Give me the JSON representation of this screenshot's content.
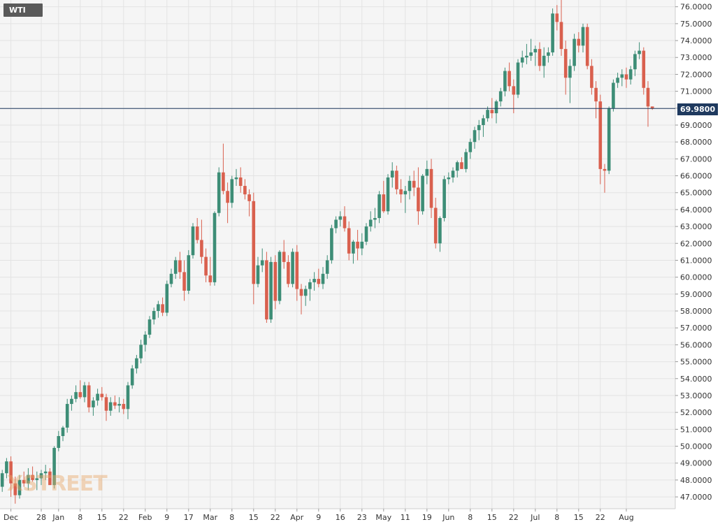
{
  "chart_data": {
    "type": "candlestick",
    "symbol": "WTI",
    "last_price": "69.9800",
    "last_value": 69.98,
    "watermark": "XSTREET",
    "ylim": [
      46.3,
      76.4
    ],
    "y_ticks": [
      "47.0000",
      "48.0000",
      "49.0000",
      "50.0000",
      "51.0000",
      "52.0000",
      "53.0000",
      "54.0000",
      "55.0000",
      "56.0000",
      "57.0000",
      "58.0000",
      "59.0000",
      "60.0000",
      "61.0000",
      "62.0000",
      "63.0000",
      "64.0000",
      "65.0000",
      "66.0000",
      "67.0000",
      "68.0000",
      "69.0000",
      "70.0000",
      "71.0000",
      "72.0000",
      "73.0000",
      "74.0000",
      "75.0000",
      "76.0000"
    ],
    "x_ticks": [
      {
        "label": "Dec",
        "index": 2
      },
      {
        "label": "28",
        "index": 9
      },
      {
        "label": "Jan",
        "index": 13
      },
      {
        "label": "8",
        "index": 18
      },
      {
        "label": "15",
        "index": 23
      },
      {
        "label": "22",
        "index": 28
      },
      {
        "label": "Feb",
        "index": 33
      },
      {
        "label": "9",
        "index": 38
      },
      {
        "label": "17",
        "index": 43
      },
      {
        "label": "Mar",
        "index": 48
      },
      {
        "label": "8",
        "index": 53
      },
      {
        "label": "15",
        "index": 58
      },
      {
        "label": "22",
        "index": 63
      },
      {
        "label": "Apr",
        "index": 68
      },
      {
        "label": "9",
        "index": 73
      },
      {
        "label": "16",
        "index": 78
      },
      {
        "label": "23",
        "index": 83
      },
      {
        "label": "May",
        "index": 88
      },
      {
        "label": "11",
        "index": 93
      },
      {
        "label": "19",
        "index": 98
      },
      {
        "label": "Jun",
        "index": 103
      },
      {
        "label": "8",
        "index": 108
      },
      {
        "label": "15",
        "index": 113
      },
      {
        "label": "22",
        "index": 118
      },
      {
        "label": "Jul",
        "index": 123
      },
      {
        "label": "8",
        "index": 128
      },
      {
        "label": "15",
        "index": 133
      },
      {
        "label": "22",
        "index": 138
      },
      {
        "label": "Aug",
        "index": 144
      }
    ],
    "candles": [
      {
        "o": 47.6,
        "h": 48.6,
        "l": 47.3,
        "c": 48.4
      },
      {
        "o": 48.4,
        "h": 49.3,
        "l": 48.1,
        "c": 49.1
      },
      {
        "o": 49.1,
        "h": 49.4,
        "l": 47.0,
        "c": 47.8
      },
      {
        "o": 47.8,
        "h": 48.2,
        "l": 46.6,
        "c": 47.1
      },
      {
        "o": 47.1,
        "h": 48.3,
        "l": 46.9,
        "c": 48.0
      },
      {
        "o": 48.0,
        "h": 48.5,
        "l": 47.6,
        "c": 47.8
      },
      {
        "o": 47.8,
        "h": 48.7,
        "l": 47.4,
        "c": 48.3
      },
      {
        "o": 48.3,
        "h": 48.8,
        "l": 47.9,
        "c": 48.0
      },
      {
        "o": 48.0,
        "h": 48.5,
        "l": 47.4,
        "c": 48.1
      },
      {
        "o": 48.1,
        "h": 48.6,
        "l": 47.7,
        "c": 48.4
      },
      {
        "o": 48.4,
        "h": 48.9,
        "l": 48.0,
        "c": 48.5
      },
      {
        "o": 48.5,
        "h": 48.7,
        "l": 47.8,
        "c": 47.7
      },
      {
        "o": 47.7,
        "h": 50.0,
        "l": 47.5,
        "c": 49.9
      },
      {
        "o": 49.9,
        "h": 50.9,
        "l": 49.7,
        "c": 50.6
      },
      {
        "o": 50.6,
        "h": 51.2,
        "l": 50.3,
        "c": 51.1
      },
      {
        "o": 51.1,
        "h": 52.8,
        "l": 50.8,
        "c": 52.5
      },
      {
        "o": 52.5,
        "h": 53.0,
        "l": 52.1,
        "c": 52.8
      },
      {
        "o": 52.8,
        "h": 53.6,
        "l": 52.6,
        "c": 53.2
      },
      {
        "o": 53.2,
        "h": 53.9,
        "l": 52.8,
        "c": 52.9
      },
      {
        "o": 52.9,
        "h": 53.8,
        "l": 52.6,
        "c": 53.6
      },
      {
        "o": 53.6,
        "h": 53.8,
        "l": 52.0,
        "c": 52.3
      },
      {
        "o": 52.3,
        "h": 52.9,
        "l": 51.8,
        "c": 52.7
      },
      {
        "o": 52.7,
        "h": 53.4,
        "l": 52.4,
        "c": 53.1
      },
      {
        "o": 53.1,
        "h": 53.5,
        "l": 52.7,
        "c": 52.9
      },
      {
        "o": 52.9,
        "h": 53.1,
        "l": 51.5,
        "c": 52.1
      },
      {
        "o": 52.1,
        "h": 52.9,
        "l": 51.8,
        "c": 52.6
      },
      {
        "o": 52.6,
        "h": 53.0,
        "l": 52.2,
        "c": 52.4
      },
      {
        "o": 52.4,
        "h": 52.9,
        "l": 52.0,
        "c": 52.5
      },
      {
        "o": 52.5,
        "h": 52.8,
        "l": 51.9,
        "c": 52.2
      },
      {
        "o": 52.2,
        "h": 53.8,
        "l": 51.6,
        "c": 53.6
      },
      {
        "o": 53.6,
        "h": 54.8,
        "l": 53.4,
        "c": 54.6
      },
      {
        "o": 54.6,
        "h": 55.4,
        "l": 54.3,
        "c": 55.2
      },
      {
        "o": 55.2,
        "h": 56.3,
        "l": 54.9,
        "c": 56.0
      },
      {
        "o": 56.0,
        "h": 56.8,
        "l": 55.6,
        "c": 56.6
      },
      {
        "o": 56.6,
        "h": 57.7,
        "l": 56.4,
        "c": 57.5
      },
      {
        "o": 57.5,
        "h": 58.2,
        "l": 57.2,
        "c": 58.0
      },
      {
        "o": 58.0,
        "h": 58.6,
        "l": 57.6,
        "c": 58.4
      },
      {
        "o": 58.4,
        "h": 58.8,
        "l": 57.7,
        "c": 57.9
      },
      {
        "o": 57.9,
        "h": 59.8,
        "l": 57.7,
        "c": 59.6
      },
      {
        "o": 59.6,
        "h": 60.5,
        "l": 59.4,
        "c": 60.2
      },
      {
        "o": 60.2,
        "h": 61.2,
        "l": 59.9,
        "c": 61.0
      },
      {
        "o": 61.0,
        "h": 61.5,
        "l": 59.9,
        "c": 60.3
      },
      {
        "o": 60.3,
        "h": 61.0,
        "l": 58.6,
        "c": 59.2
      },
      {
        "o": 59.2,
        "h": 61.6,
        "l": 59.0,
        "c": 61.3
      },
      {
        "o": 61.3,
        "h": 63.2,
        "l": 61.1,
        "c": 63.0
      },
      {
        "o": 63.0,
        "h": 63.5,
        "l": 62.0,
        "c": 62.2
      },
      {
        "o": 62.2,
        "h": 63.4,
        "l": 60.8,
        "c": 61.2
      },
      {
        "o": 61.2,
        "h": 61.7,
        "l": 59.7,
        "c": 60.1
      },
      {
        "o": 60.1,
        "h": 61.2,
        "l": 59.5,
        "c": 59.7
      },
      {
        "o": 59.7,
        "h": 63.9,
        "l": 59.5,
        "c": 63.8
      },
      {
        "o": 63.8,
        "h": 66.5,
        "l": 63.6,
        "c": 66.2
      },
      {
        "o": 66.2,
        "h": 67.9,
        "l": 64.9,
        "c": 65.1
      },
      {
        "o": 65.1,
        "h": 65.6,
        "l": 63.2,
        "c": 64.4
      },
      {
        "o": 64.4,
        "h": 66.0,
        "l": 64.1,
        "c": 65.8
      },
      {
        "o": 65.8,
        "h": 66.4,
        "l": 65.4,
        "c": 65.9
      },
      {
        "o": 65.9,
        "h": 66.5,
        "l": 65.0,
        "c": 65.4
      },
      {
        "o": 65.4,
        "h": 65.8,
        "l": 64.6,
        "c": 64.9
      },
      {
        "o": 64.9,
        "h": 65.2,
        "l": 63.6,
        "c": 64.5
      },
      {
        "o": 64.5,
        "h": 65.0,
        "l": 58.4,
        "c": 59.6
      },
      {
        "o": 59.6,
        "h": 61.2,
        "l": 59.4,
        "c": 60.7
      },
      {
        "o": 60.7,
        "h": 61.7,
        "l": 60.3,
        "c": 61.0
      },
      {
        "o": 61.0,
        "h": 61.5,
        "l": 57.3,
        "c": 57.5
      },
      {
        "o": 57.5,
        "h": 61.2,
        "l": 57.3,
        "c": 60.9
      },
      {
        "o": 60.9,
        "h": 61.3,
        "l": 58.1,
        "c": 58.6
      },
      {
        "o": 58.6,
        "h": 61.6,
        "l": 58.4,
        "c": 61.5
      },
      {
        "o": 61.5,
        "h": 62.2,
        "l": 60.5,
        "c": 60.9
      },
      {
        "o": 60.9,
        "h": 61.3,
        "l": 59.4,
        "c": 59.6
      },
      {
        "o": 59.6,
        "h": 61.7,
        "l": 59.4,
        "c": 61.5
      },
      {
        "o": 61.5,
        "h": 61.9,
        "l": 58.6,
        "c": 59.3
      },
      {
        "o": 59.3,
        "h": 59.6,
        "l": 57.8,
        "c": 58.9
      },
      {
        "o": 58.9,
        "h": 59.5,
        "l": 58.3,
        "c": 59.3
      },
      {
        "o": 59.3,
        "h": 59.9,
        "l": 58.6,
        "c": 59.7
      },
      {
        "o": 59.7,
        "h": 60.3,
        "l": 59.2,
        "c": 59.9
      },
      {
        "o": 59.9,
        "h": 60.5,
        "l": 59.4,
        "c": 59.6
      },
      {
        "o": 59.6,
        "h": 60.6,
        "l": 59.3,
        "c": 60.2
      },
      {
        "o": 60.2,
        "h": 61.3,
        "l": 59.9,
        "c": 61.0
      },
      {
        "o": 61.0,
        "h": 63.1,
        "l": 60.8,
        "c": 62.9
      },
      {
        "o": 62.9,
        "h": 63.6,
        "l": 62.6,
        "c": 63.4
      },
      {
        "o": 63.4,
        "h": 63.9,
        "l": 63.0,
        "c": 63.6
      },
      {
        "o": 63.6,
        "h": 64.2,
        "l": 62.7,
        "c": 62.9
      },
      {
        "o": 62.9,
        "h": 63.3,
        "l": 61.0,
        "c": 61.4
      },
      {
        "o": 61.4,
        "h": 62.2,
        "l": 60.8,
        "c": 62.1
      },
      {
        "o": 62.1,
        "h": 62.8,
        "l": 61.0,
        "c": 61.7
      },
      {
        "o": 61.7,
        "h": 62.6,
        "l": 61.3,
        "c": 62.1
      },
      {
        "o": 62.1,
        "h": 63.2,
        "l": 61.9,
        "c": 63.0
      },
      {
        "o": 63.0,
        "h": 63.9,
        "l": 62.7,
        "c": 63.4
      },
      {
        "o": 63.4,
        "h": 64.1,
        "l": 62.9,
        "c": 63.5
      },
      {
        "o": 63.5,
        "h": 65.1,
        "l": 63.2,
        "c": 64.9
      },
      {
        "o": 64.9,
        "h": 65.7,
        "l": 63.8,
        "c": 63.9
      },
      {
        "o": 63.9,
        "h": 66.1,
        "l": 63.7,
        "c": 65.9
      },
      {
        "o": 65.9,
        "h": 66.8,
        "l": 65.3,
        "c": 66.3
      },
      {
        "o": 66.3,
        "h": 66.6,
        "l": 64.9,
        "c": 65.2
      },
      {
        "o": 65.2,
        "h": 65.8,
        "l": 64.4,
        "c": 64.9
      },
      {
        "o": 64.9,
        "h": 65.4,
        "l": 63.8,
        "c": 65.1
      },
      {
        "o": 65.1,
        "h": 66.0,
        "l": 64.6,
        "c": 65.7
      },
      {
        "o": 65.7,
        "h": 66.3,
        "l": 64.8,
        "c": 65.3
      },
      {
        "o": 65.3,
        "h": 66.5,
        "l": 63.1,
        "c": 63.9
      },
      {
        "o": 63.9,
        "h": 66.1,
        "l": 63.7,
        "c": 66.0
      },
      {
        "o": 66.0,
        "h": 66.9,
        "l": 65.5,
        "c": 66.4
      },
      {
        "o": 66.4,
        "h": 67.0,
        "l": 63.5,
        "c": 64.1
      },
      {
        "o": 64.1,
        "h": 64.7,
        "l": 61.7,
        "c": 62.0
      },
      {
        "o": 62.0,
        "h": 63.6,
        "l": 61.5,
        "c": 63.5
      },
      {
        "o": 63.5,
        "h": 66.0,
        "l": 63.3,
        "c": 65.8
      },
      {
        "o": 65.8,
        "h": 66.2,
        "l": 65.5,
        "c": 65.9
      },
      {
        "o": 65.9,
        "h": 66.5,
        "l": 65.6,
        "c": 66.3
      },
      {
        "o": 66.3,
        "h": 66.9,
        "l": 65.9,
        "c": 66.8
      },
      {
        "o": 66.8,
        "h": 67.1,
        "l": 66.5,
        "c": 66.4
      },
      {
        "o": 66.4,
        "h": 67.6,
        "l": 66.2,
        "c": 67.4
      },
      {
        "o": 67.4,
        "h": 68.2,
        "l": 67.0,
        "c": 68.0
      },
      {
        "o": 68.0,
        "h": 68.9,
        "l": 67.6,
        "c": 68.7
      },
      {
        "o": 68.7,
        "h": 69.3,
        "l": 68.1,
        "c": 69.0
      },
      {
        "o": 69.0,
        "h": 69.6,
        "l": 68.3,
        "c": 69.4
      },
      {
        "o": 69.4,
        "h": 70.1,
        "l": 69.2,
        "c": 69.9
      },
      {
        "o": 69.9,
        "h": 70.6,
        "l": 69.4,
        "c": 69.7
      },
      {
        "o": 69.7,
        "h": 70.5,
        "l": 69.1,
        "c": 70.4
      },
      {
        "o": 70.4,
        "h": 71.2,
        "l": 70.1,
        "c": 71.0
      },
      {
        "o": 71.0,
        "h": 72.4,
        "l": 70.7,
        "c": 72.2
      },
      {
        "o": 72.2,
        "h": 72.7,
        "l": 71.0,
        "c": 71.3
      },
      {
        "o": 71.3,
        "h": 71.7,
        "l": 69.7,
        "c": 70.8
      },
      {
        "o": 70.8,
        "h": 72.9,
        "l": 70.6,
        "c": 72.7
      },
      {
        "o": 72.7,
        "h": 73.4,
        "l": 72.4,
        "c": 73.0
      },
      {
        "o": 73.0,
        "h": 73.8,
        "l": 72.6,
        "c": 73.1
      },
      {
        "o": 73.1,
        "h": 74.1,
        "l": 72.8,
        "c": 73.3
      },
      {
        "o": 73.3,
        "h": 73.7,
        "l": 72.5,
        "c": 73.5
      },
      {
        "o": 73.5,
        "h": 73.9,
        "l": 72.2,
        "c": 72.5
      },
      {
        "o": 72.5,
        "h": 73.6,
        "l": 71.8,
        "c": 73.1
      },
      {
        "o": 73.1,
        "h": 73.6,
        "l": 72.7,
        "c": 73.3
      },
      {
        "o": 73.3,
        "h": 75.9,
        "l": 73.1,
        "c": 75.6
      },
      {
        "o": 75.6,
        "h": 76.1,
        "l": 74.6,
        "c": 75.1
      },
      {
        "o": 75.1,
        "h": 76.4,
        "l": 73.1,
        "c": 73.5
      },
      {
        "o": 73.5,
        "h": 74.0,
        "l": 70.8,
        "c": 71.8
      },
      {
        "o": 71.8,
        "h": 72.9,
        "l": 70.3,
        "c": 72.5
      },
      {
        "o": 72.5,
        "h": 74.4,
        "l": 72.2,
        "c": 74.1
      },
      {
        "o": 74.1,
        "h": 74.5,
        "l": 73.3,
        "c": 73.7
      },
      {
        "o": 73.7,
        "h": 75.0,
        "l": 73.3,
        "c": 74.8
      },
      {
        "o": 74.8,
        "h": 75.0,
        "l": 72.3,
        "c": 72.5
      },
      {
        "o": 72.5,
        "h": 72.9,
        "l": 70.8,
        "c": 71.2
      },
      {
        "o": 71.2,
        "h": 71.6,
        "l": 69.4,
        "c": 70.4
      },
      {
        "o": 70.4,
        "h": 70.8,
        "l": 65.5,
        "c": 66.4
      },
      {
        "o": 66.4,
        "h": 66.7,
        "l": 65.0,
        "c": 66.3
      },
      {
        "o": 66.3,
        "h": 70.1,
        "l": 66.1,
        "c": 70.0
      },
      {
        "o": 70.0,
        "h": 71.7,
        "l": 69.8,
        "c": 71.5
      },
      {
        "o": 71.5,
        "h": 72.1,
        "l": 71.2,
        "c": 71.8
      },
      {
        "o": 71.8,
        "h": 72.3,
        "l": 71.3,
        "c": 72.0
      },
      {
        "o": 72.0,
        "h": 72.4,
        "l": 71.2,
        "c": 71.7
      },
      {
        "o": 71.7,
        "h": 72.5,
        "l": 71.4,
        "c": 72.3
      },
      {
        "o": 72.3,
        "h": 73.4,
        "l": 71.9,
        "c": 73.2
      },
      {
        "o": 73.2,
        "h": 73.9,
        "l": 72.9,
        "c": 73.4
      },
      {
        "o": 73.4,
        "h": 73.6,
        "l": 70.8,
        "c": 71.2
      },
      {
        "o": 71.2,
        "h": 71.6,
        "l": 68.9,
        "c": 70.1
      },
      {
        "o": 70.1,
        "h": 70.1,
        "l": 69.9,
        "c": 69.98
      }
    ],
    "colors": {
      "up": "#3d8d76",
      "down": "#d9604e",
      "grid": "#e3e3e3",
      "axis": "#cfcfcf",
      "last_line": "#1f3a5f",
      "bg": "#f5f5f5"
    }
  }
}
